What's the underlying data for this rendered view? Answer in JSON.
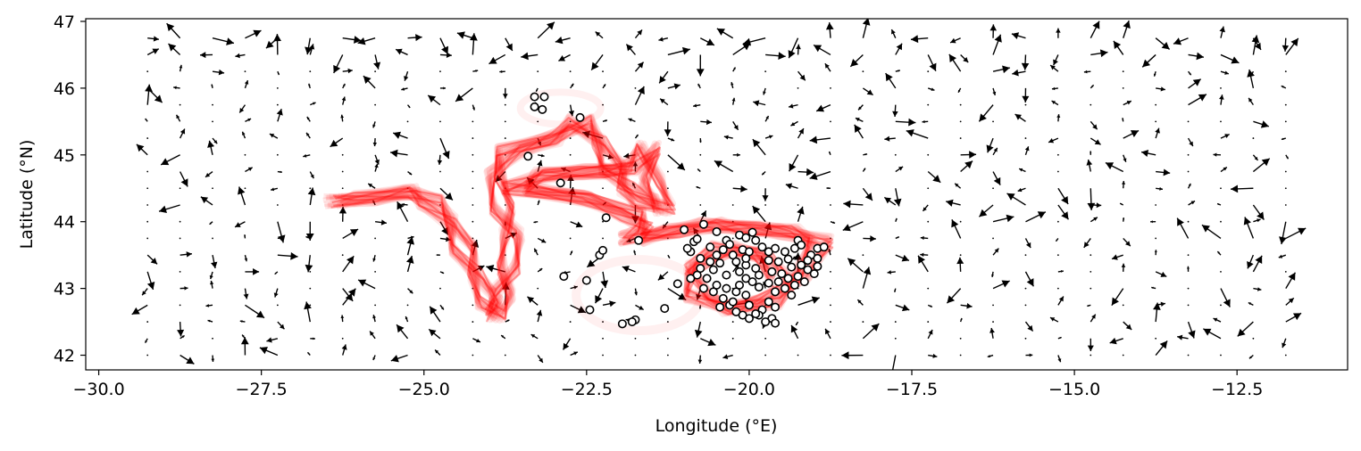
{
  "chart_data": {
    "type": "scatter",
    "title": "",
    "xlabel": "Longitude (°E)",
    "ylabel": "Latitude (°N)",
    "xlim": [
      -30.2,
      -10.8
    ],
    "ylim": [
      41.78,
      47.04
    ],
    "grid": false,
    "legend": "none",
    "x_ticks": [
      -30.0,
      -27.5,
      -25.0,
      -22.5,
      -20.0,
      -17.5,
      -15.0,
      -12.5
    ],
    "x_tick_labels": [
      "−30.0",
      "−27.5",
      "−25.0",
      "−22.5",
      "−20.0",
      "−17.5",
      "−15.0",
      "−12.5"
    ],
    "y_ticks": [
      42,
      43,
      44,
      45,
      46,
      47
    ],
    "y_tick_labels": [
      "42",
      "43",
      "44",
      "45",
      "46",
      "47"
    ],
    "colors": {
      "trajectory": "#ff0000",
      "quiver": "#000000",
      "marker_face": "#ffffff",
      "marker_edge": "#000000"
    },
    "quiver": {
      "description_hidden": true,
      "lon_start": -29.25,
      "lon_step": 0.5,
      "n_lon": 36,
      "lat_start": 42.0,
      "lat_step": 0.25,
      "n_lat": 20
    },
    "trajectory_main": [
      [
        -26.4,
        44.3
      ],
      [
        -25.9,
        44.35
      ],
      [
        -25.2,
        44.45
      ],
      [
        -24.9,
        44.3
      ],
      [
        -24.6,
        44.0
      ],
      [
        -24.4,
        43.6
      ],
      [
        -24.2,
        43.2
      ],
      [
        -24.0,
        42.8
      ],
      [
        -23.9,
        42.6
      ],
      [
        -23.8,
        42.9
      ],
      [
        -23.7,
        43.3
      ],
      [
        -23.65,
        43.8
      ],
      [
        -23.8,
        44.2
      ],
      [
        -23.9,
        44.7
      ],
      [
        -23.7,
        45.05
      ],
      [
        -23.0,
        45.25
      ],
      [
        -22.6,
        45.5
      ],
      [
        -22.3,
        45.2
      ],
      [
        -22.1,
        44.8
      ],
      [
        -21.9,
        44.5
      ],
      [
        -21.6,
        44.3
      ],
      [
        -21.3,
        44.2
      ],
      [
        -21.5,
        44.6
      ],
      [
        -21.55,
        45.1
      ],
      [
        -21.8,
        44.8
      ],
      [
        -22.4,
        44.75
      ],
      [
        -23.2,
        44.7
      ],
      [
        -23.6,
        44.5
      ],
      [
        -22.5,
        44.35
      ],
      [
        -21.8,
        44.1
      ],
      [
        -21.6,
        43.9
      ],
      [
        -21.8,
        43.75
      ],
      [
        -21.2,
        43.85
      ],
      [
        -20.6,
        43.95
      ],
      [
        -20.0,
        43.9
      ],
      [
        -19.4,
        43.85
      ],
      [
        -18.9,
        43.7
      ],
      [
        -19.2,
        43.2
      ],
      [
        -19.7,
        42.8
      ],
      [
        -20.3,
        42.7
      ],
      [
        -20.8,
        42.9
      ],
      [
        -20.9,
        43.3
      ],
      [
        -20.4,
        43.6
      ],
      [
        -19.8,
        43.5
      ],
      [
        -19.5,
        43.1
      ]
    ],
    "drifter_points": [
      [
        -23.3,
        45.87
      ],
      [
        -23.15,
        45.87
      ],
      [
        -23.3,
        45.72
      ],
      [
        -23.18,
        45.68
      ],
      [
        -22.6,
        45.56
      ],
      [
        -23.4,
        44.98
      ],
      [
        -22.9,
        44.58
      ],
      [
        -22.2,
        44.06
      ],
      [
        -22.3,
        43.5
      ],
      [
        -22.25,
        43.57
      ],
      [
        -22.85,
        43.18
      ],
      [
        -22.5,
        43.12
      ],
      [
        -22.45,
        42.68
      ],
      [
        -21.75,
        42.53
      ],
      [
        -21.8,
        42.5
      ],
      [
        -21.95,
        42.47
      ],
      [
        -21.3,
        42.7
      ],
      [
        -21.1,
        43.07
      ],
      [
        -21.7,
        43.72
      ],
      [
        -21.0,
        43.88
      ],
      [
        -20.7,
        43.96
      ],
      [
        -20.85,
        43.7
      ],
      [
        -20.8,
        43.74
      ],
      [
        -20.9,
        43.55
      ],
      [
        -20.95,
        43.6
      ],
      [
        -20.75,
        43.45
      ],
      [
        -20.5,
        43.5
      ],
      [
        -20.5,
        43.85
      ],
      [
        -20.35,
        43.72
      ],
      [
        -20.3,
        43.66
      ],
      [
        -20.15,
        43.8
      ],
      [
        -20.05,
        43.76
      ],
      [
        -19.95,
        43.84
      ],
      [
        -19.9,
        43.72
      ],
      [
        -20.1,
        43.58
      ],
      [
        -20.4,
        43.58
      ],
      [
        -20.6,
        43.62
      ],
      [
        -20.25,
        43.5
      ],
      [
        -20.0,
        43.55
      ],
      [
        -19.8,
        43.62
      ],
      [
        -19.7,
        43.55
      ],
      [
        -19.6,
        43.6
      ],
      [
        -19.45,
        43.55
      ],
      [
        -19.3,
        43.6
      ],
      [
        -19.25,
        43.72
      ],
      [
        -19.2,
        43.65
      ],
      [
        -18.95,
        43.6
      ],
      [
        -18.85,
        43.62
      ],
      [
        -19.05,
        43.5
      ],
      [
        -19.4,
        43.44
      ],
      [
        -19.55,
        43.4
      ],
      [
        -19.7,
        43.42
      ],
      [
        -19.9,
        43.3
      ],
      [
        -20.05,
        43.35
      ],
      [
        -20.2,
        43.4
      ],
      [
        -19.35,
        43.32
      ],
      [
        -19.2,
        43.35
      ],
      [
        -19.1,
        43.28
      ],
      [
        -18.95,
        43.33
      ],
      [
        -19.0,
        43.22
      ],
      [
        -19.25,
        43.18
      ],
      [
        -19.4,
        43.15
      ],
      [
        -19.55,
        43.1
      ],
      [
        -19.7,
        43.08
      ],
      [
        -19.85,
        43.02
      ],
      [
        -19.6,
        42.95
      ],
      [
        -19.45,
        43.0
      ],
      [
        -19.3,
        43.05
      ],
      [
        -19.15,
        43.1
      ],
      [
        -19.35,
        42.9
      ],
      [
        -19.7,
        42.8
      ],
      [
        -19.6,
        42.72
      ],
      [
        -19.8,
        42.68
      ],
      [
        -19.65,
        42.55
      ],
      [
        -19.75,
        42.5
      ],
      [
        -19.6,
        42.48
      ],
      [
        -19.85,
        42.6
      ],
      [
        -20.0,
        42.75
      ],
      [
        -20.05,
        42.9
      ],
      [
        -20.2,
        42.95
      ],
      [
        -20.15,
        43.05
      ],
      [
        -20.35,
        43.0
      ],
      [
        -20.5,
        43.05
      ],
      [
        -20.65,
        43.15
      ],
      [
        -20.8,
        43.2
      ],
      [
        -20.9,
        43.15
      ],
      [
        -20.7,
        43.0
      ],
      [
        -20.55,
        42.95
      ],
      [
        -20.4,
        42.85
      ],
      [
        -20.3,
        42.75
      ],
      [
        -20.45,
        42.72
      ],
      [
        -20.2,
        42.65
      ],
      [
        -20.1,
        42.6
      ],
      [
        -20.0,
        42.55
      ],
      [
        -19.9,
        42.62
      ],
      [
        -20.25,
        42.8
      ],
      [
        -20.05,
        43.15
      ],
      [
        -19.95,
        43.1
      ],
      [
        -20.15,
        43.25
      ],
      [
        -20.35,
        43.2
      ],
      [
        -20.55,
        43.28
      ],
      [
        -20.6,
        43.4
      ],
      [
        -20.75,
        43.3
      ],
      [
        -20.45,
        43.38
      ],
      [
        -20.05,
        43.45
      ],
      [
        -19.85,
        43.2
      ],
      [
        -19.65,
        43.25
      ],
      [
        -19.5,
        43.22
      ],
      [
        -19.1,
        43.42
      ],
      [
        -18.95,
        43.45
      ]
    ]
  }
}
